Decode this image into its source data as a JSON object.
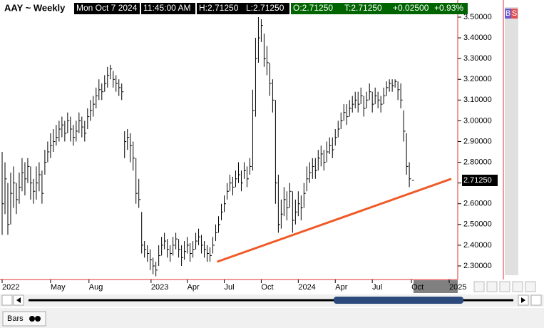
{
  "header": {
    "symbol": "AAY ~ Weekly",
    "date": "Mon Oct 7 2024",
    "time": "11:45:00 AM",
    "high": "H:2.71250",
    "low": "L:2.71250",
    "open": "O:2.71250",
    "last": "T:2.71250",
    "change": "+0.02500",
    "change_pct": "+0.93%"
  },
  "chart_data": {
    "type": "ohlc",
    "color": "#000000",
    "high": [
      2.85,
      2.8,
      2.7,
      2.75,
      2.78,
      2.7,
      2.75,
      2.82,
      2.8,
      2.82,
      2.78,
      2.72,
      2.78,
      2.8,
      2.76,
      2.86,
      2.9,
      2.94,
      2.96,
      2.98,
      3.0,
      3.02,
      3.0,
      3.04,
      3.02,
      2.98,
      3.0,
      3.04,
      3.02,
      3.0,
      3.06,
      3.1,
      3.12,
      3.16,
      3.2,
      3.18,
      3.22,
      3.26,
      3.27,
      3.24,
      3.22,
      3.2,
      3.18,
      2.95,
      2.96,
      2.94,
      2.9,
      2.82,
      2.72,
      2.56,
      2.42,
      2.4,
      2.38,
      2.34,
      2.32,
      2.4,
      2.44,
      2.46,
      2.43,
      2.4,
      2.44,
      2.46,
      2.43,
      2.4,
      2.42,
      2.44,
      2.41,
      2.42,
      2.46,
      2.48,
      2.45,
      2.42,
      2.4,
      2.39,
      2.44,
      2.5,
      2.54,
      2.6,
      2.64,
      2.7,
      2.74,
      2.73,
      2.76,
      2.8,
      2.76,
      2.8,
      2.78,
      2.82,
      3.15,
      3.4,
      3.5,
      3.49,
      3.42,
      3.36,
      3.28,
      3.2,
      3.1,
      2.74,
      2.62,
      2.68,
      2.66,
      2.7,
      2.66,
      2.62,
      2.66,
      2.64,
      2.7,
      2.78,
      2.8,
      2.82,
      2.82,
      2.86,
      2.88,
      2.86,
      2.9,
      2.92,
      2.92,
      2.96,
      3.0,
      3.04,
      3.08,
      3.08,
      3.1,
      3.12,
      3.14,
      3.14,
      3.16,
      3.12,
      3.14,
      3.18,
      3.14,
      3.16,
      3.14,
      3.12,
      3.16,
      3.19,
      3.2,
      3.2,
      3.2,
      3.19,
      3.18,
      3.05,
      2.94,
      2.8,
      2.7125
    ],
    "low": [
      2.45,
      2.55,
      2.45,
      2.5,
      2.58,
      2.55,
      2.6,
      2.66,
      2.64,
      2.7,
      2.62,
      2.6,
      2.62,
      2.66,
      2.6,
      2.74,
      2.8,
      2.82,
      2.85,
      2.88,
      2.9,
      2.92,
      2.9,
      2.94,
      2.9,
      2.88,
      2.9,
      2.94,
      2.92,
      2.9,
      2.96,
      3.0,
      3.02,
      3.06,
      3.1,
      3.1,
      3.14,
      3.16,
      3.2,
      3.16,
      3.14,
      3.12,
      3.1,
      2.82,
      2.86,
      2.8,
      2.76,
      2.6,
      2.58,
      2.36,
      2.34,
      2.32,
      2.28,
      2.26,
      2.25,
      2.3,
      2.35,
      2.38,
      2.34,
      2.32,
      2.35,
      2.38,
      2.34,
      2.3,
      2.33,
      2.36,
      2.32,
      2.34,
      2.38,
      2.4,
      2.36,
      2.34,
      2.32,
      2.32,
      2.36,
      2.42,
      2.46,
      2.52,
      2.56,
      2.62,
      2.66,
      2.64,
      2.68,
      2.7,
      2.66,
      2.72,
      2.68,
      2.74,
      2.76,
      3.02,
      3.28,
      3.38,
      3.26,
      3.22,
      3.12,
      3.04,
      2.6,
      2.46,
      2.48,
      2.54,
      2.52,
      2.58,
      2.46,
      2.5,
      2.54,
      2.52,
      2.58,
      2.66,
      2.7,
      2.72,
      2.72,
      2.76,
      2.78,
      2.76,
      2.8,
      2.84,
      2.82,
      2.88,
      2.92,
      2.96,
      3.0,
      2.98,
      3.02,
      3.04,
      3.06,
      3.04,
      3.08,
      3.02,
      3.06,
      3.1,
      3.04,
      3.08,
      3.06,
      3.04,
      3.08,
      3.12,
      3.14,
      3.14,
      3.16,
      3.1,
      3.06,
      2.9,
      2.74,
      2.68,
      2.7125
    ],
    "close": [
      2.6,
      2.72,
      2.5,
      2.65,
      2.7,
      2.62,
      2.68,
      2.75,
      2.72,
      2.78,
      2.7,
      2.66,
      2.7,
      2.74,
      2.65,
      2.8,
      2.85,
      2.88,
      2.9,
      2.92,
      2.96,
      2.98,
      2.94,
      3.0,
      2.96,
      2.92,
      2.95,
      3.0,
      2.97,
      2.94,
      3.02,
      3.05,
      3.08,
      3.12,
      3.15,
      3.14,
      3.18,
      3.22,
      3.25,
      3.2,
      3.18,
      3.16,
      3.14,
      2.9,
      2.92,
      2.88,
      2.82,
      2.65,
      2.62,
      2.4,
      2.38,
      2.36,
      2.33,
      2.3,
      2.28,
      2.35,
      2.4,
      2.42,
      2.38,
      2.36,
      2.4,
      2.43,
      2.38,
      2.34,
      2.37,
      2.4,
      2.36,
      2.38,
      2.42,
      2.44,
      2.4,
      2.38,
      2.36,
      2.35,
      2.4,
      2.46,
      2.5,
      2.56,
      2.6,
      2.66,
      2.7,
      2.68,
      2.72,
      2.74,
      2.7,
      2.76,
      2.72,
      2.78,
      3.05,
      3.3,
      3.4,
      3.46,
      3.3,
      3.28,
      3.18,
      3.1,
      2.7,
      2.5,
      2.55,
      2.62,
      2.58,
      2.66,
      2.52,
      2.56,
      2.6,
      2.58,
      2.65,
      2.72,
      2.75,
      2.78,
      2.76,
      2.82,
      2.84,
      2.8,
      2.85,
      2.88,
      2.86,
      2.92,
      2.96,
      3.0,
      3.04,
      3.02,
      3.06,
      3.08,
      3.1,
      3.08,
      3.12,
      3.06,
      3.1,
      3.14,
      3.08,
      3.12,
      3.1,
      3.08,
      3.12,
      3.16,
      3.18,
      3.17,
      3.19,
      3.15,
      3.1,
      2.95,
      2.78,
      2.72,
      2.7125
    ],
    "xlim": [
      -0.75,
      158.5
    ],
    "xticks": [
      {
        "value": 0,
        "label": "2022"
      },
      {
        "value": 17,
        "label": "May"
      },
      {
        "value": 30.5,
        "label": "Aug"
      },
      {
        "value": 52.3,
        "label": "2023"
      },
      {
        "value": 65,
        "label": "Apr"
      },
      {
        "value": 78,
        "label": "Jul"
      },
      {
        "value": 91,
        "label": "Oct"
      },
      {
        "value": 104,
        "label": "2024"
      },
      {
        "value": 117,
        "label": "Apr"
      },
      {
        "value": 130,
        "label": "Jul"
      },
      {
        "value": 143.75,
        "label": "Oct"
      },
      {
        "value": 157,
        "label": "2025"
      }
    ],
    "ylim": [
      2.2345,
      3.5825
    ],
    "yticks": [
      {
        "value": 2.3,
        "label": "2.30000"
      },
      {
        "value": 2.4,
        "label": "2.40000"
      },
      {
        "value": 2.5,
        "label": "2.50000"
      },
      {
        "value": 2.6,
        "label": "2.60000"
      },
      {
        "value": 2.7,
        "label": "2.70000"
      },
      {
        "value": 2.8,
        "label": "2.80000"
      },
      {
        "value": 2.9,
        "label": "2.90000"
      },
      {
        "value": 3.0,
        "label": "3.00000"
      },
      {
        "value": 3.1,
        "label": "3.10000"
      },
      {
        "value": 3.2,
        "label": "3.20000"
      },
      {
        "value": 3.3,
        "label": "3.30000"
      },
      {
        "value": 3.4,
        "label": "3.40000"
      },
      {
        "value": 3.5,
        "label": "3.50000"
      }
    ],
    "last_price": {
      "value": 2.7125,
      "label": "2.71250"
    },
    "trendline": {
      "x": [
        75.5,
        157.75
      ],
      "values": [
        2.32,
        2.72
      ],
      "color": "#f05a28"
    }
  },
  "toolbar": {
    "mode": "Bars",
    "side_buttons": [
      "B",
      "S"
    ]
  }
}
